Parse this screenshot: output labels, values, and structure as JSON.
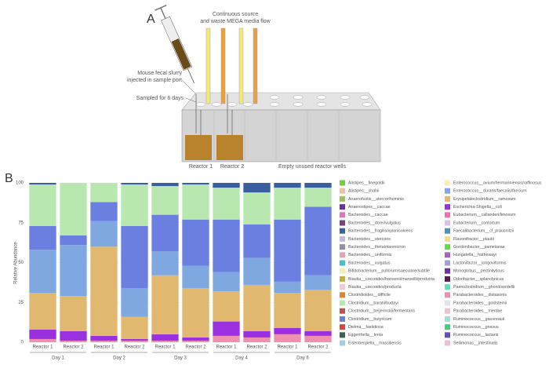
{
  "panel_a": {
    "letter": "A",
    "flow_label": [
      "Continuous source",
      "and waste MEGA media flow"
    ],
    "slurry_label": [
      "Mouse fecal slurry",
      "injected in sample port"
    ],
    "sampled_label": "Sampled for 6 days",
    "reactor1_label": "Reactor 1",
    "reactor2_label": "Reactor 2",
    "empty_label": "Empty unused reactor wells"
  },
  "chart_data": {
    "type": "stacked_bar",
    "letter": "B",
    "ylabel": "Relative Abundance",
    "categories": [
      "Reactor 1",
      "Reactor 2",
      "Reactor 1",
      "Reactor 2",
      "Reactor 1",
      "Reactor 2",
      "Reactor 1",
      "Reactor 2",
      "Reactor 1",
      "Reactor 2"
    ],
    "groups": [
      "Day 1",
      "Day 2",
      "Day 3",
      "Day 4",
      "Day 6"
    ],
    "ylim": [
      0,
      100
    ],
    "yticks": [
      0,
      25,
      50,
      75,
      100
    ],
    "grid": true,
    "series": [
      {
        "name": "Alistipes__finegoldii",
        "color": "#7ac943",
        "values": [
          0,
          0,
          0,
          0,
          0,
          0,
          0,
          0,
          0,
          0
        ]
      },
      {
        "name": "Alistipes__shahii",
        "color": "#f0c0a0",
        "values": [
          0,
          0,
          0,
          0,
          0,
          0,
          0,
          0,
          0,
          0
        ]
      },
      {
        "name": "Anaerofustis__stercorihominis",
        "color": "#a0c060",
        "values": [
          0,
          0,
          0,
          0,
          0,
          0,
          0,
          0,
          0,
          0
        ]
      },
      {
        "name": "Anaerostipes__caccae",
        "color": "#7030a0",
        "values": [
          0,
          0,
          0,
          0,
          0,
          0,
          0,
          0,
          0,
          0
        ]
      },
      {
        "name": "Bacteroides__caccae",
        "color": "#e070c0",
        "values": [
          0,
          0,
          0,
          0,
          0,
          0,
          0,
          0,
          0,
          0
        ]
      },
      {
        "name": "Bacteroides__dorei/vulgatus",
        "color": "#7a3f7a",
        "values": [
          0,
          0,
          0,
          0,
          0,
          0,
          0,
          0,
          0,
          0
        ]
      },
      {
        "name": "Bacteroides__fragilis/xylanisolvens",
        "color": "#3a5fa0",
        "values": [
          1,
          0,
          0,
          1,
          2,
          1,
          3,
          6,
          3,
          3
        ]
      },
      {
        "name": "Bacteroides__stercoris",
        "color": "#c8b8e0",
        "values": [
          0,
          0,
          0,
          0,
          0,
          0,
          0,
          0,
          0,
          0
        ]
      },
      {
        "name": "Bacteroides__thetaiotaomicron",
        "color": "#9090a0",
        "values": [
          0,
          0,
          0,
          0,
          0,
          0,
          0,
          0,
          0,
          0
        ]
      },
      {
        "name": "Bacteroides__uniformis",
        "color": "#e8a0b8",
        "values": [
          0,
          0,
          0,
          0,
          0,
          0,
          0,
          0,
          0,
          0
        ]
      },
      {
        "name": "Bacteroides__vulgatus",
        "color": "#40c0d0",
        "values": [
          0,
          0,
          0,
          0,
          0,
          0,
          0,
          0,
          0,
          0
        ]
      },
      {
        "name": "Bifidobacterium__pullorum/saeculare/subtile",
        "color": "#f0f0b0",
        "values": [
          0,
          0,
          0,
          0,
          0,
          0,
          0,
          0,
          0,
          0
        ]
      },
      {
        "name": "Blautia__coccoides/hansenii/marseilli/producta",
        "color": "#c0b040",
        "values": [
          0,
          0,
          0,
          0,
          0,
          0,
          0,
          0,
          0,
          0
        ]
      },
      {
        "name": "Blautia__coccoides/producta",
        "color": "#f0c8d8",
        "values": [
          0,
          0,
          0,
          0,
          0,
          0,
          0,
          0,
          0,
          0
        ]
      },
      {
        "name": "Clostridioides__difficile",
        "color": "#e08030",
        "values": [
          0,
          0,
          0,
          0,
          0,
          0,
          0,
          0,
          0,
          0
        ]
      },
      {
        "name": "Clostridium__baratii/budayi",
        "color": "#b8e8b0",
        "values": [
          26,
          33,
          12,
          26,
          18,
          22,
          20,
          20,
          20,
          12
        ]
      },
      {
        "name": "Clostridium__beijerinckii/fermentans",
        "color": "#c05050",
        "values": [
          0,
          0,
          0,
          0,
          0,
          0,
          0,
          0,
          0,
          0
        ]
      },
      {
        "name": "Clostridium__butyricum",
        "color": "#6a7fe0",
        "values": [
          15,
          6,
          12,
          39,
          23,
          29,
          33,
          21,
          39,
          43
        ]
      },
      {
        "name": "Dielma__fastidiosa",
        "color": "#e04040",
        "values": [
          0,
          0,
          0,
          0,
          0,
          0,
          0,
          0,
          0,
          0
        ]
      },
      {
        "name": "Eggerthella__lenta",
        "color": "#406050",
        "values": [
          0,
          0,
          0,
          0,
          0,
          0,
          0,
          0,
          0,
          0
        ]
      },
      {
        "name": "Eisenbergiella__massiliensis",
        "color": "#a0d0e0",
        "values": [
          0,
          0,
          0,
          0,
          0,
          0,
          0,
          0,
          0,
          0
        ]
      },
      {
        "name": "Enterococcus__avium/hermanniensis/raffinosus",
        "color": "#f8f0b0",
        "values": [
          0,
          0,
          0,
          0,
          0,
          0,
          0,
          0,
          0,
          0
        ]
      },
      {
        "name": "Enterococcus__durans/faecalis/faecium",
        "color": "#80a8e0",
        "values": [
          27,
          32,
          16,
          18,
          15,
          14,
          12,
          17,
          7,
          9
        ]
      },
      {
        "name": "Erysipelatoclostridium__ramosum",
        "color": "#e0b870",
        "values": [
          23,
          22,
          56,
          14,
          37,
          31,
          19,
          29,
          22,
          26
        ]
      },
      {
        "name": "Escherichia-Shigella__coli",
        "color": "#9b30e0",
        "values": [
          6,
          6,
          3,
          1,
          4,
          2,
          9,
          4,
          4,
          3
        ]
      },
      {
        "name": "Eubacterium__callanderi/limosum",
        "color": "#f070b0",
        "values": [
          0,
          0,
          0,
          0,
          0,
          0,
          0,
          0,
          0,
          0
        ]
      },
      {
        "name": "Eubacterium__contortum",
        "color": "#d8c0e8",
        "values": [
          0,
          0,
          0,
          0,
          0,
          0,
          0,
          0,
          0,
          0
        ]
      },
      {
        "name": "Faecalibacterium__cf_prausnitzii",
        "color": "#4a90c0",
        "values": [
          0,
          0,
          0,
          0,
          0,
          0,
          0,
          0,
          0,
          0
        ]
      },
      {
        "name": "Flavonifractor__plautii",
        "color": "#f0e080",
        "values": [
          0,
          0,
          0,
          0,
          0,
          0,
          0,
          0,
          0,
          0
        ]
      },
      {
        "name": "Gordonibacter__pamelaeae",
        "color": "#60e040",
        "values": [
          0,
          0,
          0,
          0,
          0,
          0,
          0,
          0,
          0,
          0
        ]
      },
      {
        "name": "Hungatella__hathewayi",
        "color": "#b060c0",
        "values": [
          0,
          0,
          0,
          0,
          0,
          0,
          0,
          0,
          0,
          0
        ]
      },
      {
        "name": "Lactonifactor__longoviformis",
        "color": "#a0a0e0",
        "values": [
          0,
          0,
          0,
          0,
          0,
          0,
          0,
          0,
          0,
          0
        ]
      },
      {
        "name": "Monoglobus__pectinilyticus",
        "color": "#7030a0",
        "values": [
          0,
          0,
          0,
          0,
          0,
          0,
          0,
          0,
          0,
          0
        ]
      },
      {
        "name": "Odoribacter__splanchnicus",
        "color": "#502050",
        "values": [
          0,
          0,
          0,
          0,
          0,
          0,
          0,
          0,
          0,
          0
        ]
      },
      {
        "name": "Paeniclostridium__ghonii/sordellii",
        "color": "#60e0c0",
        "values": [
          0,
          0,
          0,
          0,
          0,
          0,
          0,
          0,
          0,
          0
        ]
      },
      {
        "name": "Parabacteroides__distasonis",
        "color": "#f090b0",
        "values": [
          2,
          1,
          1,
          1,
          1,
          1,
          4,
          3,
          5,
          4
        ]
      },
      {
        "name": "Parabacteroides__goldsteinii",
        "color": "#e0e0f0",
        "values": [
          0,
          0,
          0,
          0,
          0,
          0,
          0,
          0,
          0,
          0
        ]
      },
      {
        "name": "Parabacteroides__merdae",
        "color": "#f0c0d0",
        "values": [
          0,
          0,
          0,
          0,
          0,
          0,
          0,
          0,
          0,
          0
        ]
      },
      {
        "name": "Ruminococcus__gauvreauii",
        "color": "#a0e0d0",
        "values": [
          0,
          0,
          0,
          0,
          0,
          0,
          0,
          0,
          0,
          0
        ]
      },
      {
        "name": "Ruminococcus__gnavus",
        "color": "#40d080",
        "values": [
          0,
          0,
          0,
          0,
          0,
          0,
          0,
          0,
          0,
          0
        ]
      },
      {
        "name": "Ruminococcus__lactaris",
        "color": "#6050c0",
        "values": [
          0,
          0,
          0,
          0,
          0,
          0,
          0,
          0,
          0,
          0
        ]
      },
      {
        "name": "Sellimonas__intestinalis",
        "color": "#e8c0d8",
        "values": [
          0,
          0,
          0,
          0,
          0,
          0,
          0,
          0,
          0,
          0
        ]
      }
    ]
  }
}
